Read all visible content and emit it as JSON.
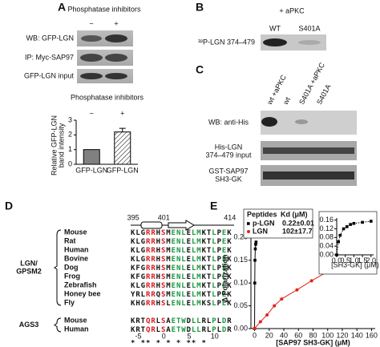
{
  "panel_labels": [
    "A",
    "B",
    "C",
    "D",
    "E"
  ],
  "panel_a": {
    "header": "Phosphatase inhibitors",
    "lanes": [
      "−",
      "+"
    ],
    "blot_labels": [
      "WB: GFP-LGN",
      "IP: Myc-SAP97",
      "GFP-LGN input"
    ]
  },
  "panel_b": {
    "header": "+ aPKC",
    "lanes": [
      "WT",
      "S401A"
    ],
    "blot_label": "³²P-LGN 374–479"
  },
  "panel_c": {
    "lanes": [
      "wt +aPKC",
      "wt",
      "S401A +aPKC",
      "S401A"
    ],
    "blot_labels": [
      [
        "WB: anti-His"
      ],
      [
        "His-LGN",
        "374–479 input"
      ],
      [
        "GST-SAP97",
        "SH3-GK"
      ]
    ]
  },
  "panel_d": {
    "positions": [
      "395",
      "401",
      "414"
    ],
    "groups": [
      {
        "label": [
          "LGN/",
          "GPSM2"
        ],
        "rows": [
          {
            "species": "Mouse",
            "sequence": "KLGRRHSMENLELMKTLPEK"
          },
          {
            "species": "Rat",
            "sequence": "KLGRRHSMENLELMKTLPEK"
          },
          {
            "species": "Human",
            "sequence": "KLGRRHSMENLELMKTLPEK"
          },
          {
            "species": "Bovine",
            "sequence": "KLGRRHSMENLELMKTLPEK"
          },
          {
            "species": "Dog",
            "sequence": "KFGRRHSMENLELMKTLPEK"
          },
          {
            "species": "Frog",
            "sequence": "KFGRRHSMENLELMKTLPEK"
          },
          {
            "species": "Zebrafish",
            "sequence": "KLGRRHSMENLELMKTLPEK"
          },
          {
            "species": "Honey bee",
            "sequence": "YRLRRQSMENLELMKTLPEK"
          },
          {
            "species": "Fly",
            "sequence": "KHGRRHSLENLELMKSLPEK"
          }
        ]
      },
      {
        "label": [
          "AGS3"
        ],
        "rows": [
          {
            "species": "Mouse",
            "sequence": "KRTQRLSAETWDLLRLPLDR"
          },
          {
            "species": "Human",
            "sequence": "KRTQRLSAETWDLLRLPLDR"
          }
        ]
      }
    ],
    "numbering": [
      "-5",
      "0",
      "5",
      "10"
    ],
    "markers": " * **  * * * ** *"
  },
  "chart_data": [
    {
      "type": "bar",
      "title": "Phosphatase inhibitors",
      "annotations": [
        "−",
        "+"
      ],
      "ylabel": [
        "Relative GFP-LGN",
        "band intensity"
      ],
      "categories": [
        "GFP-LGN",
        "GFP-LGN"
      ],
      "values": [
        1,
        2.2
      ],
      "errors": [
        null,
        0.25
      ],
      "colors": [
        "#808080",
        "#ffffff"
      ],
      "hatched": [
        false,
        true
      ],
      "ylim": [
        0,
        3
      ],
      "yticks": [
        0,
        1,
        2,
        3
      ]
    },
    {
      "type": "scatter",
      "xlabel": "[SAP97 SH3-GK] (μM)",
      "ylabel": "Δ Polarization",
      "xlim": [
        -5,
        165
      ],
      "ylim": [
        0,
        0.22
      ],
      "xticks": [
        0,
        20,
        40,
        60,
        80,
        100,
        120,
        140,
        160
      ],
      "yticks": [
        {
          "value": 0,
          "label": "0.00"
        },
        {
          "value": 0.05,
          "label": "0.05"
        },
        {
          "value": 0.1,
          "label": "0.10"
        },
        {
          "value": 0.15,
          "label": "0.15"
        },
        {
          "value": 0.2,
          "label": "0.20"
        }
      ],
      "legend_title": [
        "Peptides",
        "Kd (μM)"
      ],
      "series": [
        {
          "name": "p-LGN",
          "kd": "0.22±0.01",
          "color": "#000000",
          "marker": "square",
          "x": [
            0,
            0.25,
            0.5,
            1,
            1.5,
            2
          ],
          "values": [
            0,
            0.1,
            0.15,
            0.175,
            0.185,
            0.19
          ]
        },
        {
          "name": "LGN",
          "kd": "102±17.7",
          "color": "#e2231a",
          "marker": "circle",
          "x": [
            0,
            8,
            17,
            27,
            37,
            58,
            78,
            100,
            122,
            155
          ],
          "values": [
            0,
            0.015,
            0.03,
            0.05,
            0.065,
            0.085,
            0.105,
            0.125,
            0.145,
            0.175
          ]
        }
      ]
    },
    {
      "type": "scatter",
      "xlabel": "[SH3-GK] (μM)",
      "xlim": [
        0,
        2.15
      ],
      "ylim": [
        0,
        0.17
      ],
      "xticks": [
        {
          "value": 0,
          "label": "0.0"
        },
        0.5,
        {
          "value": 1,
          "label": "1.0"
        },
        1.5,
        {
          "value": 2,
          "label": "2.0"
        }
      ],
      "yticks": [
        {
          "value": 0,
          "label": "0.00"
        },
        {
          "value": 0.04,
          "label": "0.04"
        },
        {
          "value": 0.08,
          "label": "0.08"
        },
        {
          "value": 0.12,
          "label": "0.12"
        },
        {
          "value": 0.16,
          "label": "0.16"
        }
      ],
      "series": [
        {
          "color": "#000000",
          "marker": "square",
          "dotted": true,
          "x": [
            0,
            0.1,
            0.2,
            0.4,
            0.6,
            0.8,
            1,
            1.5,
            2
          ],
          "values": [
            0,
            0.06,
            0.09,
            0.12,
            0.13,
            0.14,
            0.145,
            0.15,
            0.155
          ]
        }
      ]
    }
  ]
}
